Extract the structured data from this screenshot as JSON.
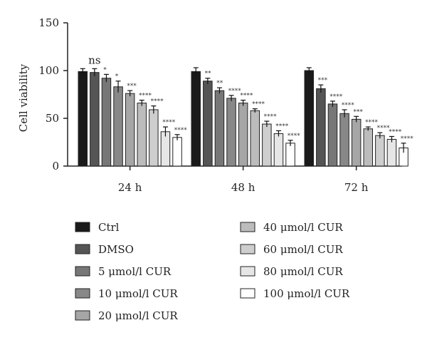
{
  "chart_data": {
    "type": "bar",
    "ylabel": "Cell viability",
    "ylim": [
      0,
      150
    ],
    "yticks": [
      0,
      50,
      100,
      150
    ],
    "categories": [
      "24 h",
      "48 h",
      "72 h"
    ],
    "series": [
      {
        "name": "Ctrl",
        "color": "#1a1a1a",
        "values": [
          99,
          99,
          100
        ],
        "errors": [
          3,
          4,
          3
        ],
        "sig": [
          "",
          "",
          ""
        ]
      },
      {
        "name": "DMSO",
        "color": "#555555",
        "values": [
          98,
          89,
          81
        ],
        "errors": [
          4,
          3,
          4
        ],
        "sig": [
          "ns",
          "**",
          "***"
        ]
      },
      {
        "name": "5 μmol/l CUR",
        "color": "#777777",
        "values": [
          92,
          79,
          65
        ],
        "errors": [
          4,
          3,
          3
        ],
        "sig": [
          "*",
          "**",
          "****"
        ]
      },
      {
        "name": "10 μmol/l CUR",
        "color": "#888888",
        "values": [
          83,
          71,
          55
        ],
        "errors": [
          6,
          3,
          4
        ],
        "sig": [
          "*",
          "****",
          "****"
        ]
      },
      {
        "name": "20 μmol/l CUR",
        "color": "#a6a6a6",
        "values": [
          76,
          66,
          49
        ],
        "errors": [
          3,
          3,
          3
        ],
        "sig": [
          "***",
          "****",
          "***"
        ]
      },
      {
        "name": "40 μmol/l CUR",
        "color": "#bcbcbc",
        "values": [
          66,
          58,
          39
        ],
        "errors": [
          3,
          2,
          2
        ],
        "sig": [
          "****",
          "****",
          "****"
        ]
      },
      {
        "name": "60 μmol/l CUR",
        "color": "#cecece",
        "values": [
          59,
          44,
          32
        ],
        "errors": [
          4,
          3,
          3
        ],
        "sig": [
          "****",
          "****",
          "****"
        ]
      },
      {
        "name": "80 μmol/l CUR",
        "color": "#e6e6e6",
        "values": [
          36,
          34,
          28
        ],
        "errors": [
          5,
          3,
          3
        ],
        "sig": [
          "****",
          "****",
          "****"
        ]
      },
      {
        "name": "100 μmol/l CUR",
        "color": "#ffffff",
        "values": [
          30,
          24,
          19
        ],
        "errors": [
          3,
          3,
          5
        ],
        "sig": [
          "****",
          "****",
          "****"
        ]
      }
    ]
  }
}
